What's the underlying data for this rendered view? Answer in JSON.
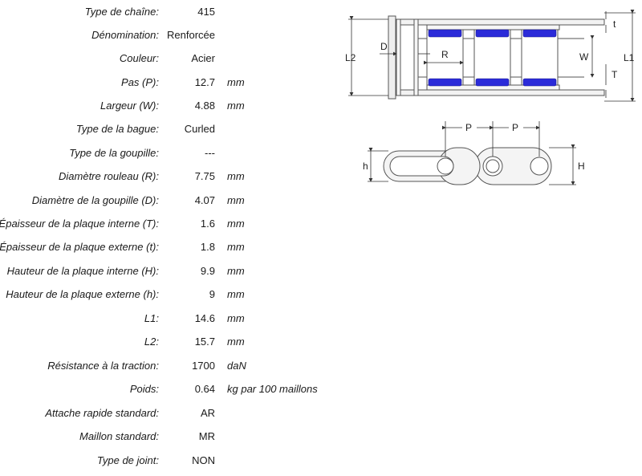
{
  "specs": [
    {
      "label": "Type de chaîne:",
      "value": "415",
      "unit": ""
    },
    {
      "label": "Dénomination:",
      "value": "Renforcée",
      "unit": ""
    },
    {
      "label": "Couleur:",
      "value": "Acier",
      "unit": ""
    },
    {
      "label": "Pas (P):",
      "value": "12.7",
      "unit": "mm"
    },
    {
      "label": "Largeur (W):",
      "value": "4.88",
      "unit": "mm"
    },
    {
      "label": "Type de la bague:",
      "value": "Curled",
      "unit": ""
    },
    {
      "label": "Type de la goupille:",
      "value": "---",
      "unit": ""
    },
    {
      "label": "Diamètre rouleau (R):",
      "value": "7.75",
      "unit": "mm"
    },
    {
      "label": "Diamètre de la goupille (D):",
      "value": "4.07",
      "unit": "mm"
    },
    {
      "label": "Épaisseur de la plaque interne (T):",
      "value": "1.6",
      "unit": "mm"
    },
    {
      "label": "Épaisseur de la plaque externe (t):",
      "value": "1.8",
      "unit": "mm"
    },
    {
      "label": "Hauteur de la plaque interne (H):",
      "value": "9.9",
      "unit": "mm"
    },
    {
      "label": "Hauteur de la plaque externe (h):",
      "value": "9",
      "unit": "mm"
    },
    {
      "label": "L1:",
      "value": "14.6",
      "unit": "mm"
    },
    {
      "label": "L2:",
      "value": "15.7",
      "unit": "mm"
    },
    {
      "label": "Résistance à la traction:",
      "value": "1700",
      "unit": "daN"
    },
    {
      "label": "Poids:",
      "value": "0.64",
      "unit": "kg par 100 maillons"
    },
    {
      "label": "Attache rapide standard:",
      "value": "AR",
      "unit": ""
    },
    {
      "label": "Maillon standard:",
      "value": "MR",
      "unit": ""
    },
    {
      "label": "Type de joint:",
      "value": "NON",
      "unit": ""
    }
  ],
  "diagram": {
    "top_view_labels": {
      "l2": "L2",
      "d": "D",
      "r": "R",
      "w": "W",
      "l1": "L1",
      "t_small": "t",
      "t_big": "T"
    },
    "side_view_labels": {
      "p1": "P",
      "p2": "P",
      "h_small": "h",
      "h_big": "H"
    },
    "roller_color": "#2b2bd9"
  }
}
